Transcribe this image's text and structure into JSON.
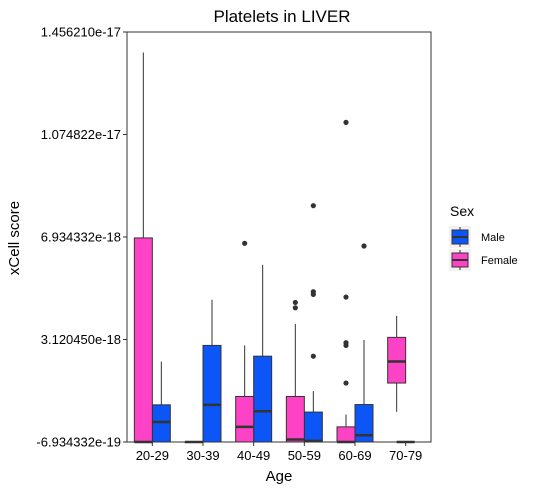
{
  "chart_data": {
    "type": "boxplot",
    "title": "Platelets in LIVER",
    "xlabel": "Age",
    "ylabel": "xCell score",
    "categories": [
      "20-29",
      "30-39",
      "40-49",
      "50-59",
      "60-69",
      "70-79"
    ],
    "y_ticks": [
      {
        "value": -6.934332e-19,
        "label": "-6.934332e-19"
      },
      {
        "value": 3.12045e-18,
        "label": "3.120450e-18"
      },
      {
        "value": 6.934332e-18,
        "label": "6.934332e-18"
      },
      {
        "value": 1.074822e-17,
        "label": "1.074822e-17"
      },
      {
        "value": 1.45621e-17,
        "label": "1.456210e-17"
      }
    ],
    "ylim": [
      -6.934332e-19,
      1.45621e-17
    ],
    "legend": {
      "title": "Sex",
      "position": "right"
    },
    "series": [
      {
        "name": "Male",
        "color": "#0c56f8",
        "boxes": [
          {
            "category": "20-29",
            "min": -6.934e-19,
            "q1": -6.934e-19,
            "median": 4.9e-20,
            "q3": 6.9e-19,
            "max": 2.3e-18,
            "outliers": []
          },
          {
            "category": "30-39",
            "min": -6.934e-19,
            "q1": -6.934e-19,
            "median": 6.9e-19,
            "q3": 2.9e-18,
            "max": 4.6e-18,
            "outliers": []
          },
          {
            "category": "40-49",
            "min": -6.934e-19,
            "q1": -6.934e-19,
            "median": 4.5e-19,
            "q3": 2.5e-18,
            "max": 5.9e-18,
            "outliers": []
          },
          {
            "category": "50-59",
            "min": -6.934e-19,
            "q1": -6.934e-19,
            "median": -6.5e-19,
            "q3": 4.2e-19,
            "max": 1.2e-18,
            "outliers": [
              2.5e-18,
              4.8e-18,
              4.9e-18,
              8.1e-18
            ]
          },
          {
            "category": "60-69",
            "min": -6.934e-19,
            "q1": -6.934e-19,
            "median": -4.4e-19,
            "q3": 7e-19,
            "max": 3.1e-18,
            "outliers": [
              6.6e-18
            ]
          }
        ]
      },
      {
        "name": "Female",
        "color": "#fe42c5",
        "boxes": [
          {
            "category": "20-29",
            "min": -6.934e-19,
            "q1": -6.934e-19,
            "median": -6.934e-19,
            "q3": 6.9e-18,
            "max": 1.38e-17,
            "outliers": []
          },
          {
            "category": "30-39",
            "min": -6.934e-19,
            "q1": -6.934e-19,
            "median": -6.934e-19,
            "q3": -6.934e-19,
            "max": -6.934e-19,
            "outliers": []
          },
          {
            "category": "40-49",
            "min": -6.934e-19,
            "q1": -6.934e-19,
            "median": -1.3e-19,
            "q3": 1e-18,
            "max": 2.9e-18,
            "outliers": [
              6.7e-18
            ]
          },
          {
            "category": "50-59",
            "min": -6.934e-19,
            "q1": -6.934e-19,
            "median": -6e-19,
            "q3": 1e-18,
            "max": 3.7e-18,
            "outliers": [
              4.3e-18,
              4.5e-18
            ]
          },
          {
            "category": "60-69",
            "min": -6.934e-19,
            "q1": -6.934e-19,
            "median": -6.934e-19,
            "q3": -1.3e-19,
            "max": 3.3e-19,
            "outliers": [
              1.5e-18,
              2.9e-18,
              3e-18,
              4.7e-18,
              1.12e-17
            ]
          },
          {
            "category": "70-79",
            "min": 4.3e-19,
            "q1": 1.5e-18,
            "median": 2.3e-18,
            "q3": 3.2e-18,
            "max": 4e-18,
            "outliers": []
          }
        ]
      }
    ],
    "extra_medians": [
      {
        "series": "Male",
        "category": "70-79",
        "value": -6.934332e-19
      }
    ]
  }
}
